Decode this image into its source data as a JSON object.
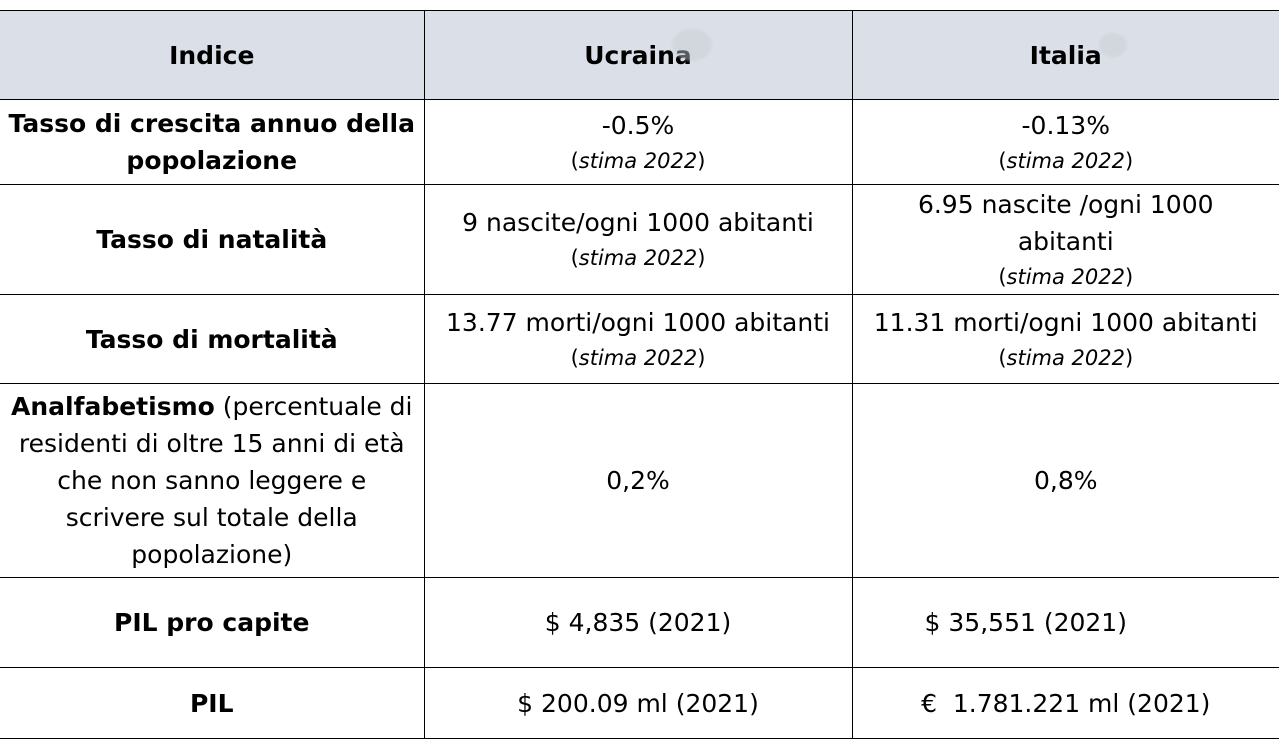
{
  "table": {
    "headers": [
      "Indice",
      "Ucraina",
      "Italia"
    ],
    "rows": [
      {
        "label": "Tasso di crescita annuo della popolazione",
        "ucraina": "-0.5%",
        "ucraina_note": "stima 2022",
        "italia": "-0.13%",
        "italia_note": "stima 2022"
      },
      {
        "label": "Tasso di natalità",
        "ucraina": "9 nascite/ogni 1000 abitanti",
        "ucraina_note": "stima 2022",
        "italia_line1": "6.95 nascite /ogni 1000",
        "italia_line2": "abitanti",
        "italia_note": "stima 2022"
      },
      {
        "label": "Tasso di mortalità",
        "ucraina": "13.77 morti/ogni 1000 abitanti",
        "ucraina_note": "stima 2022",
        "italia": "11.31 morti/ogni 1000 abitanti",
        "italia_note": "stima 2022"
      },
      {
        "label_bold": "Analfabetismo",
        "label_rest": " (percentuale di residenti di oltre 15 anni di età che non sanno leggere e scrivere sul totale della popolazione)",
        "ucraina": "0,2%",
        "italia": "0,8%"
      },
      {
        "label": "PIL pro capite",
        "ucraina": "$ 4,835 (2021)",
        "italia": "$ 35,551 (2021)"
      },
      {
        "label": "PIL",
        "ucraina": "$ 200.09 ml (2021)",
        "italia": "€  1.781.221 ml (2021)"
      }
    ]
  },
  "colors": {
    "header_bg": "#dbe0e8",
    "border": "#000000"
  }
}
